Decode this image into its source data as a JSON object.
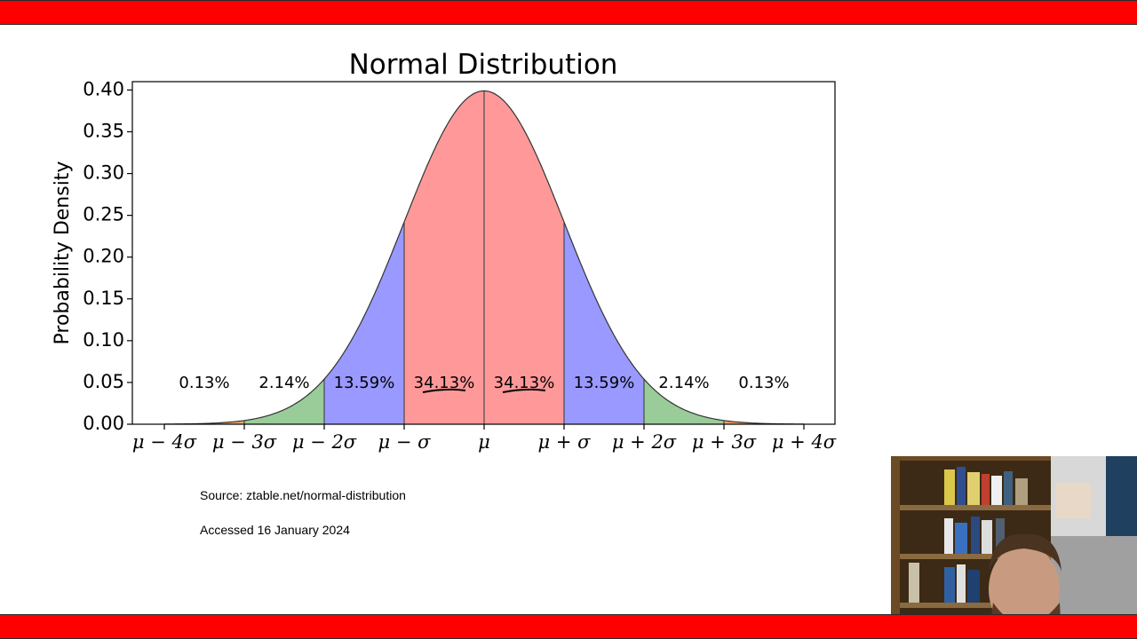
{
  "slide": {
    "source": "Source: ztable.net/normal-distribution",
    "accessed": "Accessed 16 January 2024"
  },
  "colors": {
    "frame": "#ff0000",
    "center_region": "#ff9999",
    "one_to_two_sigma": "#9999ff",
    "two_to_three_sigma": "#99cc99",
    "tail": "#f4a460"
  },
  "chart_data": {
    "type": "area",
    "title": "Normal Distribution",
    "xlabel": "",
    "ylabel": "Probability Density",
    "xlim": [
      -4,
      4
    ],
    "ylim": [
      0,
      0.41
    ],
    "x_ticks": [
      {
        "x": -4,
        "label": "μ − 4σ"
      },
      {
        "x": -3,
        "label": "μ − 3σ"
      },
      {
        "x": -2,
        "label": "μ − 2σ"
      },
      {
        "x": -1,
        "label": "μ − σ"
      },
      {
        "x": 0,
        "label": "μ"
      },
      {
        "x": 1,
        "label": "μ + σ"
      },
      {
        "x": 2,
        "label": "μ + 2σ"
      },
      {
        "x": 3,
        "label": "μ + 3σ"
      },
      {
        "x": 4,
        "label": "μ + 4σ"
      }
    ],
    "y_ticks": [
      "0.00",
      "0.05",
      "0.10",
      "0.15",
      "0.20",
      "0.25",
      "0.30",
      "0.35",
      "0.40"
    ],
    "curve": {
      "mean": 0,
      "sd": 1
    },
    "regions": [
      {
        "from": -4,
        "to": -3,
        "percent": "0.13%",
        "color": "#f4a460"
      },
      {
        "from": -3,
        "to": -2,
        "percent": "2.14%",
        "color": "#99cc99"
      },
      {
        "from": -2,
        "to": -1,
        "percent": "13.59%",
        "color": "#9999ff"
      },
      {
        "from": -1,
        "to": 0,
        "percent": "34.13%",
        "color": "#ff9999",
        "underlined": true
      },
      {
        "from": 0,
        "to": 1,
        "percent": "34.13%",
        "color": "#ff9999",
        "underlined": true
      },
      {
        "from": 1,
        "to": 2,
        "percent": "13.59%",
        "color": "#9999ff"
      },
      {
        "from": 2,
        "to": 3,
        "percent": "2.14%",
        "color": "#99cc99"
      },
      {
        "from": 3,
        "to": 4,
        "percent": "0.13%",
        "color": "#f4a460"
      }
    ],
    "label_y": 0.048
  }
}
